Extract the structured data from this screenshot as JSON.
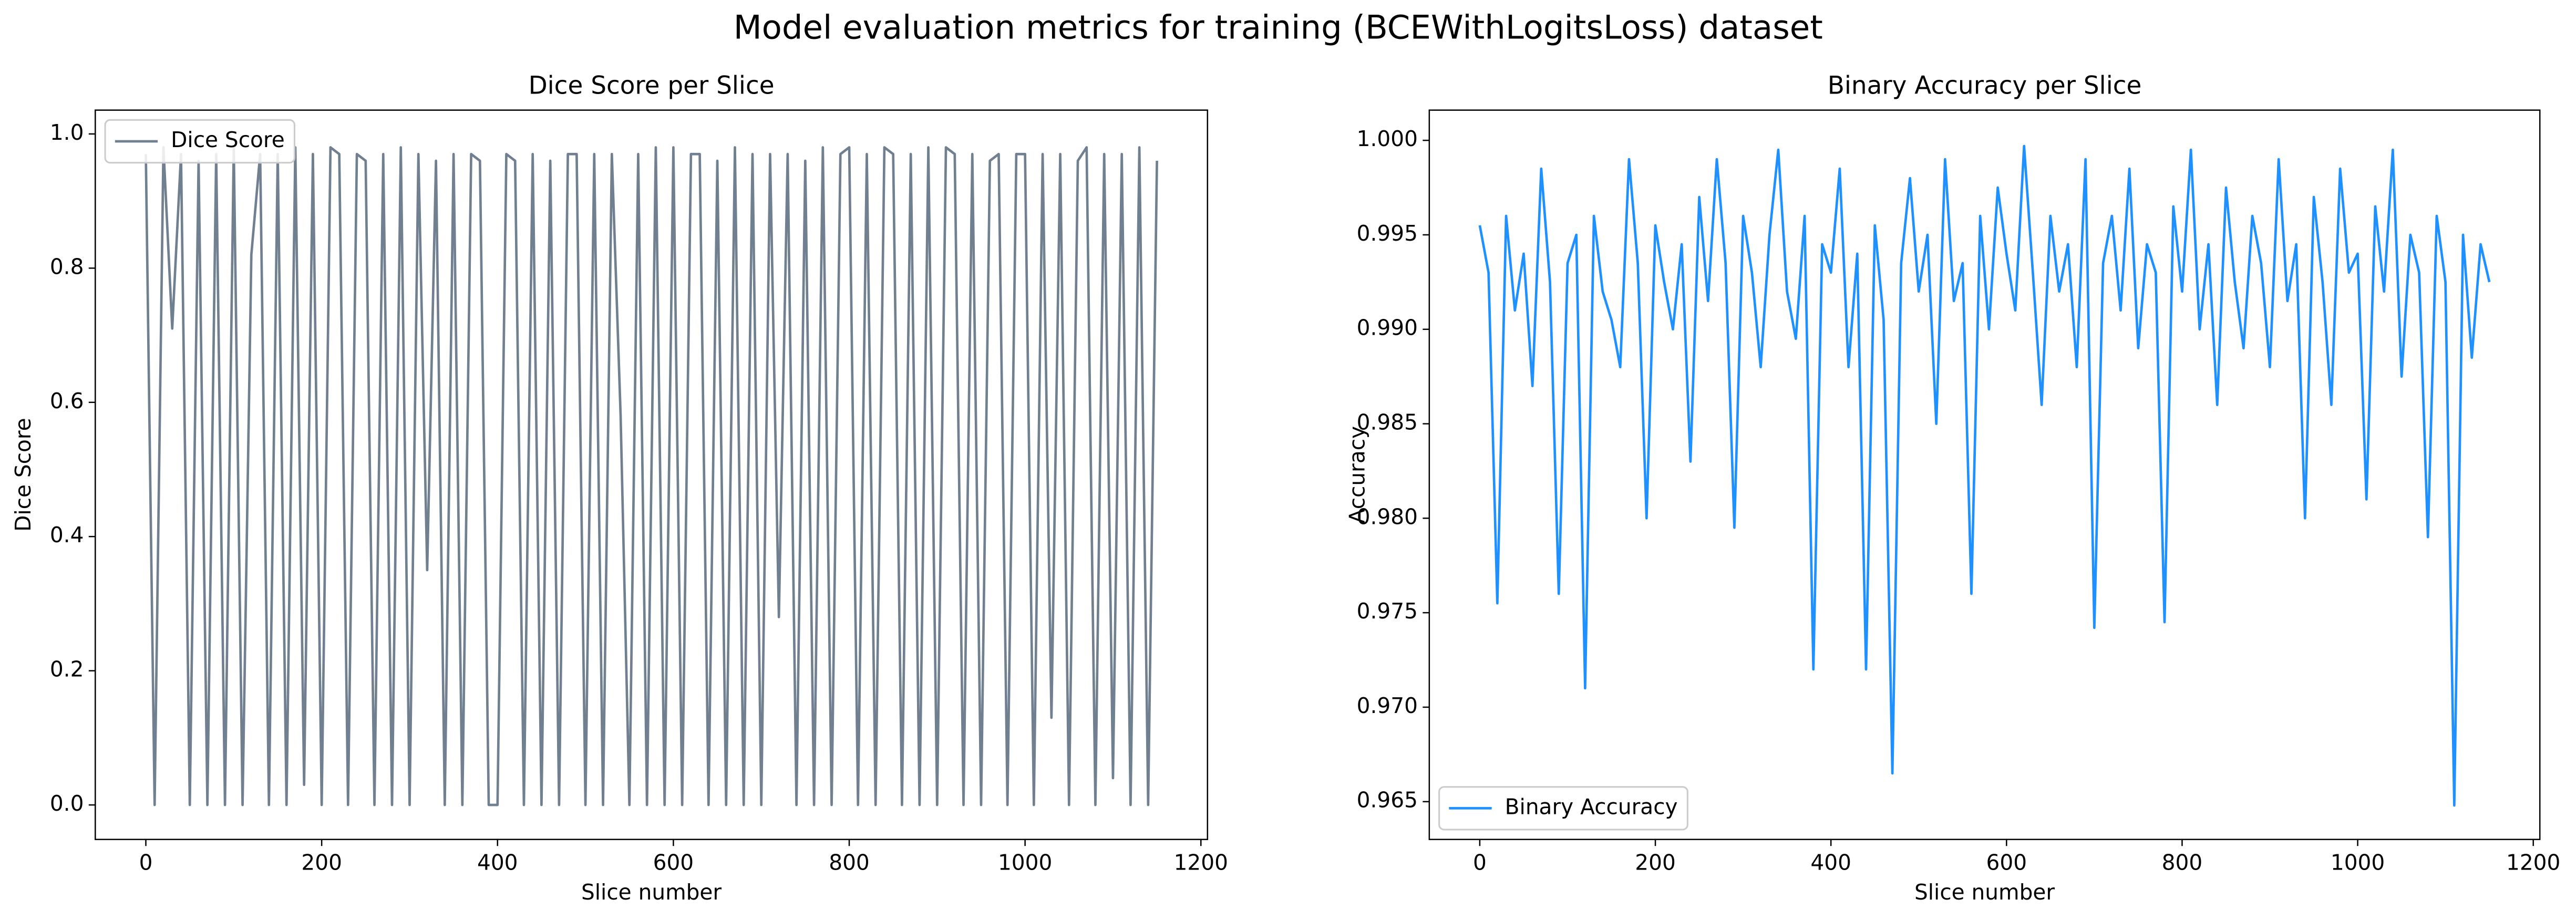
{
  "title": "Model evaluation metrics for training (BCEWithLogitsLoss) dataset",
  "chart_data": [
    {
      "type": "line",
      "title": "Dice Score per Slice",
      "x_label": "Slice number",
      "y_label": "Dice Score",
      "legend": "upper left",
      "xlim": [
        -57.5,
        1207.5
      ],
      "xticks": [
        0,
        200,
        400,
        600,
        800,
        1000,
        1200
      ],
      "ylim": [
        -0.0514,
        1.0355
      ],
      "yticks": [
        {
          "value": 0,
          "label": "0.0"
        },
        0.2,
        0.4,
        0.6,
        0.8,
        {
          "value": 1,
          "label": "1.0"
        }
      ],
      "x": [
        0,
        10,
        20,
        30,
        40,
        50,
        60,
        70,
        80,
        90,
        100,
        110,
        120,
        130,
        140,
        150,
        160,
        170,
        180,
        190,
        200,
        210,
        220,
        230,
        240,
        250,
        260,
        270,
        280,
        290,
        300,
        310,
        320,
        330,
        340,
        350,
        360,
        370,
        380,
        390,
        400,
        410,
        420,
        430,
        440,
        450,
        460,
        470,
        480,
        490,
        500,
        510,
        520,
        530,
        540,
        550,
        560,
        570,
        580,
        590,
        600,
        610,
        620,
        630,
        640,
        650,
        660,
        670,
        680,
        690,
        700,
        710,
        720,
        730,
        740,
        750,
        760,
        770,
        780,
        790,
        800,
        810,
        820,
        830,
        840,
        850,
        860,
        870,
        880,
        890,
        900,
        910,
        920,
        930,
        940,
        950,
        960,
        970,
        980,
        990,
        1000,
        1010,
        1020,
        1030,
        1040,
        1050,
        1060,
        1070,
        1080,
        1090,
        1100,
        1110,
        1120,
        1130,
        1140,
        1150
      ],
      "series": [
        {
          "name": "Dice Score",
          "color": "#708090",
          "values": [
            0.97,
            0,
            0.98,
            0.71,
            0.97,
            0,
            0.96,
            0,
            0.97,
            0,
            0.98,
            0,
            0.82,
            0.97,
            0,
            0.97,
            0,
            0.98,
            0.03,
            0.97,
            0,
            0.98,
            0.97,
            0,
            0.97,
            0.96,
            0,
            0.97,
            0,
            0.98,
            0,
            0.97,
            0.35,
            0.96,
            0,
            0.97,
            0,
            0.97,
            0.96,
            0,
            0,
            0.97,
            0.96,
            0,
            0.97,
            0,
            0.96,
            0,
            0.97,
            0.97,
            0,
            0.97,
            0,
            0.97,
            0.58,
            0,
            0.97,
            0,
            0.98,
            0,
            0.98,
            0,
            0.97,
            0.97,
            0,
            0.96,
            0,
            0.98,
            0,
            0.97,
            0,
            0.97,
            0.28,
            0.97,
            0,
            0.96,
            0,
            0.98,
            0,
            0.97,
            0.98,
            0,
            0.97,
            0,
            0.98,
            0.97,
            0,
            0.97,
            0,
            0.98,
            0,
            0.98,
            0.97,
            0,
            0.97,
            0,
            0.96,
            0.97,
            0,
            0.97,
            0.97,
            0,
            0.97,
            0.13,
            0.97,
            0,
            0.96,
            0.98,
            0,
            0.97,
            0.04,
            0.97,
            0,
            0.98,
            0,
            0.96
          ]
        }
      ]
    },
    {
      "type": "line",
      "title": "Binary Accuracy per Slice",
      "x_label": "Slice number",
      "y_label": "Accuracy",
      "legend": "lower left",
      "xlim": [
        -57.5,
        1207.5
      ],
      "xticks": [
        0,
        200,
        400,
        600,
        800,
        1000,
        1200
      ],
      "ylim": [
        0.963,
        1.0016
      ],
      "yticks": [
        0.965,
        {
          "value": 0.97,
          "label": "0.970"
        },
        0.975,
        {
          "value": 0.98,
          "label": "0.980"
        },
        0.985,
        {
          "value": 0.99,
          "label": "0.990"
        },
        0.995,
        {
          "value": 1,
          "label": "1.000"
        }
      ],
      "x": [
        0,
        10,
        20,
        30,
        40,
        50,
        60,
        70,
        80,
        90,
        100,
        110,
        120,
        130,
        140,
        150,
        160,
        170,
        180,
        190,
        200,
        210,
        220,
        230,
        240,
        250,
        260,
        270,
        280,
        290,
        300,
        310,
        320,
        330,
        340,
        350,
        360,
        370,
        380,
        390,
        400,
        410,
        420,
        430,
        440,
        450,
        460,
        470,
        480,
        490,
        500,
        510,
        520,
        530,
        540,
        550,
        560,
        570,
        580,
        590,
        600,
        610,
        620,
        630,
        640,
        650,
        660,
        670,
        680,
        690,
        700,
        710,
        720,
        730,
        740,
        750,
        760,
        770,
        780,
        790,
        800,
        810,
        820,
        830,
        840,
        850,
        860,
        870,
        880,
        890,
        900,
        910,
        920,
        930,
        940,
        950,
        960,
        970,
        980,
        990,
        1000,
        1010,
        1020,
        1030,
        1040,
        1050,
        1060,
        1070,
        1080,
        1090,
        1100,
        1110,
        1120,
        1130,
        1140,
        1150
      ],
      "series": [
        {
          "name": "Binary Accuracy",
          "color": "#1e90ff",
          "values": [
            0.9955,
            0.993,
            0.9755,
            0.996,
            0.991,
            0.994,
            0.987,
            0.9985,
            0.9925,
            0.976,
            0.9935,
            0.995,
            0.971,
            0.996,
            0.992,
            0.9905,
            0.988,
            0.999,
            0.9935,
            0.98,
            0.9955,
            0.9925,
            0.99,
            0.9945,
            0.983,
            0.997,
            0.9915,
            0.999,
            0.9935,
            0.9795,
            0.996,
            0.993,
            0.988,
            0.995,
            0.9995,
            0.992,
            0.9895,
            0.996,
            0.972,
            0.9945,
            0.993,
            0.9985,
            0.988,
            0.994,
            0.972,
            0.9955,
            0.9905,
            0.9665,
            0.9935,
            0.998,
            0.992,
            0.995,
            0.985,
            0.999,
            0.9915,
            0.9935,
            0.976,
            0.996,
            0.99,
            0.9975,
            0.994,
            0.991,
            0.9997,
            0.993,
            0.986,
            0.996,
            0.992,
            0.9945,
            0.988,
            0.999,
            0.9742,
            0.9935,
            0.996,
            0.991,
            0.9985,
            0.989,
            0.9945,
            0.993,
            0.9745,
            0.9965,
            0.992,
            0.9995,
            0.99,
            0.9945,
            0.986,
            0.9975,
            0.9925,
            0.989,
            0.996,
            0.9935,
            0.988,
            0.999,
            0.9915,
            0.9945,
            0.98,
            0.997,
            0.9925,
            0.986,
            0.9985,
            0.993,
            0.994,
            0.981,
            0.9965,
            0.992,
            0.9995,
            0.9875,
            0.995,
            0.993,
            0.979,
            0.996,
            0.9925,
            0.9648,
            0.995,
            0.9885,
            0.9945,
            0.9925
          ]
        }
      ]
    }
  ]
}
